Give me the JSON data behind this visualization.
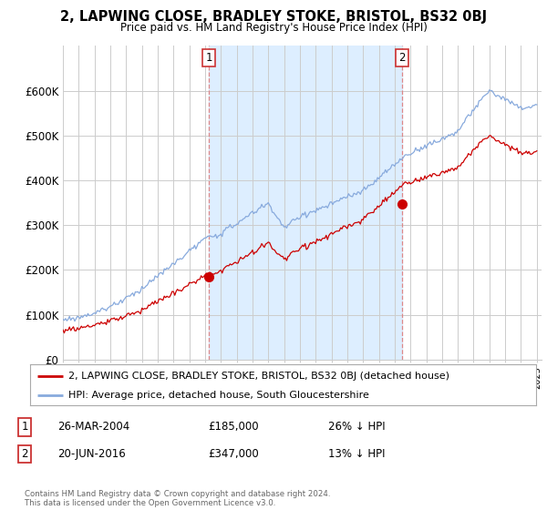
{
  "title": "2, LAPWING CLOSE, BRADLEY STOKE, BRISTOL, BS32 0BJ",
  "subtitle": "Price paid vs. HM Land Registry's House Price Index (HPI)",
  "ylim": [
    0,
    700000
  ],
  "yticks": [
    0,
    100000,
    200000,
    300000,
    400000,
    500000,
    600000
  ],
  "ytick_labels": [
    "£0",
    "£100K",
    "£200K",
    "£300K",
    "£400K",
    "£500K",
    "£600K"
  ],
  "sale1": {
    "date_num": 2004.23,
    "price": 185000,
    "label": "1",
    "text": "26-MAR-2004",
    "amount": "£185,000",
    "hpi_diff": "26% ↓ HPI"
  },
  "sale2": {
    "date_num": 2016.47,
    "price": 347000,
    "label": "2",
    "text": "20-JUN-2016",
    "amount": "£347,000",
    "hpi_diff": "13% ↓ HPI"
  },
  "property_color": "#cc0000",
  "hpi_color": "#88aadd",
  "shade_color": "#ddeeff",
  "grid_color": "#cccccc",
  "legend_label_property": "2, LAPWING CLOSE, BRADLEY STOKE, BRISTOL, BS32 0BJ (detached house)",
  "legend_label_hpi": "HPI: Average price, detached house, South Gloucestershire",
  "footer": "Contains HM Land Registry data © Crown copyright and database right 2024.\nThis data is licensed under the Open Government Licence v3.0.",
  "background_color": "#ffffff"
}
